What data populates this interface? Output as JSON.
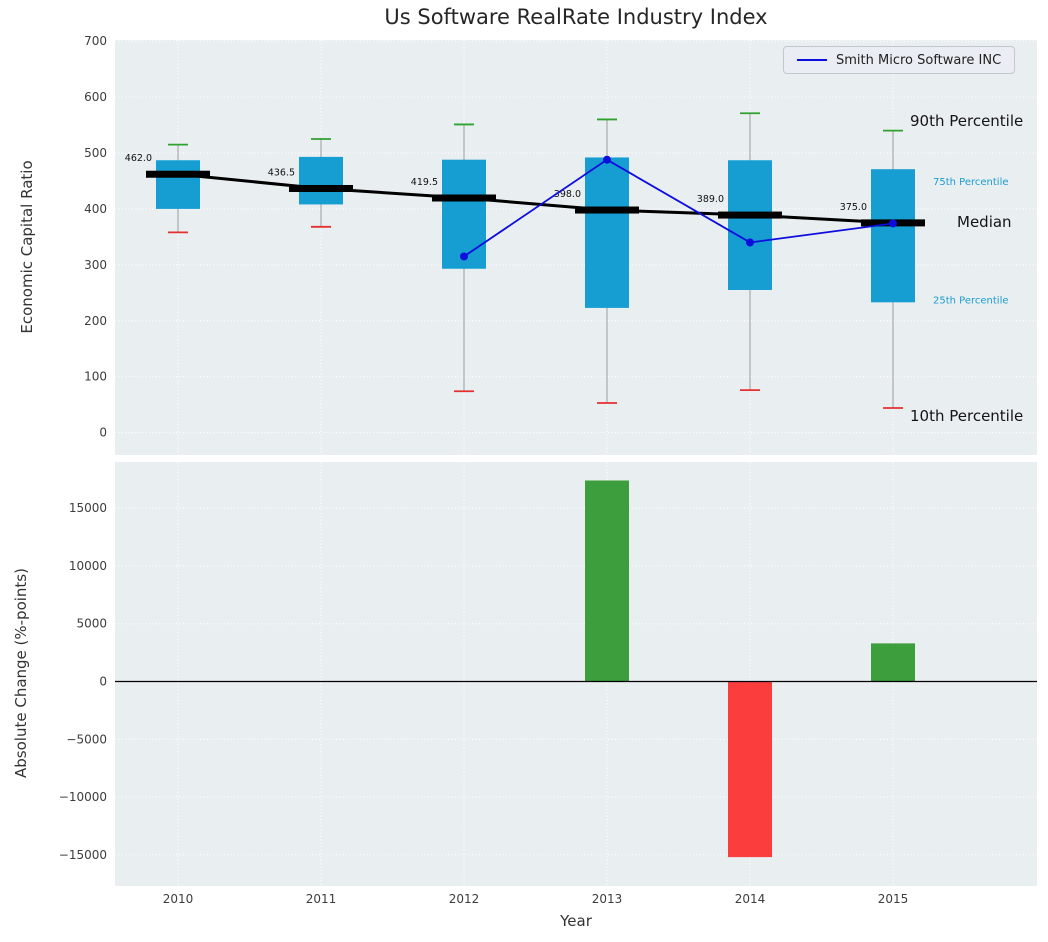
{
  "chart_data": [
    {
      "type": "boxplot",
      "title": "Us Software RealRate Industry Index",
      "ylabel": "Economic Capital Ratio",
      "categories": [
        "2010",
        "2011",
        "2012",
        "2013",
        "2014",
        "2015"
      ],
      "ylim": [
        -40,
        702
      ],
      "y_ticks": [
        0,
        100,
        200,
        300,
        400,
        500,
        600,
        700
      ],
      "grid": true,
      "legend_position": "upper right",
      "box_color": "#169dd1",
      "p90_cap_color": "#2fa12f",
      "p10_cap_color": "#e53030",
      "median_color": "#000000",
      "boxes": [
        {
          "p10": 358,
          "p25": 400,
          "median": 462.0,
          "p75": 487,
          "p90": 515
        },
        {
          "p10": 368,
          "p25": 408,
          "median": 436.5,
          "p75": 493,
          "p90": 525
        },
        {
          "p10": 74,
          "p25": 293,
          "median": 419.5,
          "p75": 488,
          "p90": 551
        },
        {
          "p10": 53,
          "p25": 223,
          "median": 398.0,
          "p75": 492,
          "p90": 560
        },
        {
          "p10": 76,
          "p25": 255,
          "median": 389.0,
          "p75": 487,
          "p90": 571
        },
        {
          "p10": 44,
          "p25": 233,
          "median": 375.0,
          "p75": 471,
          "p90": 540
        }
      ],
      "median_labels": [
        "462.0",
        "436.5",
        "419.5",
        "398.0",
        "389.0",
        "375.0"
      ],
      "series": [
        {
          "name": "Smith Micro Software INC",
          "color": "#0d0ddd",
          "x_indices": [
            2,
            3,
            4,
            5
          ],
          "values": [
            315,
            488,
            340,
            374
          ]
        }
      ],
      "annotations": [
        {
          "text": "90th Percentile",
          "value": 557,
          "color": "#141414",
          "size": 15,
          "x": 910
        },
        {
          "text": "75th Percentile",
          "value": 452,
          "color": "#1b9ccf",
          "size": 10,
          "x": 933
        },
        {
          "text": "Median",
          "value": 377,
          "color": "#141414",
          "size": 15,
          "x": 957
        },
        {
          "text": "25th Percentile",
          "value": 240,
          "color": "#1b9ccf",
          "size": 10,
          "x": 933
        },
        {
          "text": "10th Percentile",
          "value": 30,
          "color": "#141414",
          "size": 15,
          "x": 910
        }
      ]
    },
    {
      "type": "bar",
      "ylabel": "Absolute Change (%-points)",
      "xlabel": "Year",
      "categories": [
        "2010",
        "2011",
        "2012",
        "2013",
        "2014",
        "2015"
      ],
      "values": [
        0,
        0,
        0,
        17400,
        -15200,
        3300
      ],
      "ylim": [
        -17700,
        19000
      ],
      "y_ticks": [
        -15000,
        -10000,
        -5000,
        0,
        5000,
        10000,
        15000
      ],
      "positive_color": "#3c9e3c",
      "negative_color": "#fb3d3d",
      "grid": true
    }
  ],
  "style": {
    "plot_bg": "#e9eef1",
    "grid_color": "#ffffff",
    "tick_color": "#3d3d3d",
    "title_color": "#262626"
  }
}
